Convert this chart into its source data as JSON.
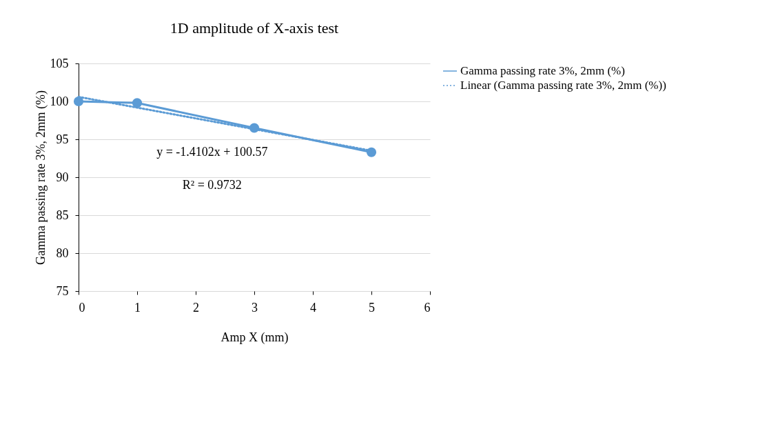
{
  "chart_data": {
    "type": "line",
    "title": "1D amplitude of X-axis test",
    "xlabel": "Amp X (mm)",
    "ylabel": "Gamma passing rate 3%, 2mm (%)",
    "x": [
      0,
      1,
      3,
      5
    ],
    "series": [
      {
        "name": "Gamma passing rate 3%, 2mm (%)",
        "color": "#5b9bd5",
        "values": [
          100,
          99.8,
          96.5,
          93.3
        ],
        "marker": "circle",
        "line_style": "solid"
      },
      {
        "name": "Linear (Gamma passing rate 3%, 2mm (%))",
        "color": "#5b9bd5",
        "x": [
          0,
          5
        ],
        "values": [
          100.6,
          93.5
        ],
        "marker": "none",
        "line_style": "dotted"
      }
    ],
    "annotations": [
      "y = -1.4102x + 100.57",
      "R² = 0.9732"
    ],
    "xlim": [
      0,
      6
    ],
    "xticks": [
      0,
      1,
      2,
      3,
      4,
      5,
      6
    ],
    "ylim": [
      75,
      105
    ],
    "yticks": [
      75,
      80,
      85,
      90,
      95,
      100,
      105
    ],
    "grid": "y",
    "legend": "right"
  }
}
